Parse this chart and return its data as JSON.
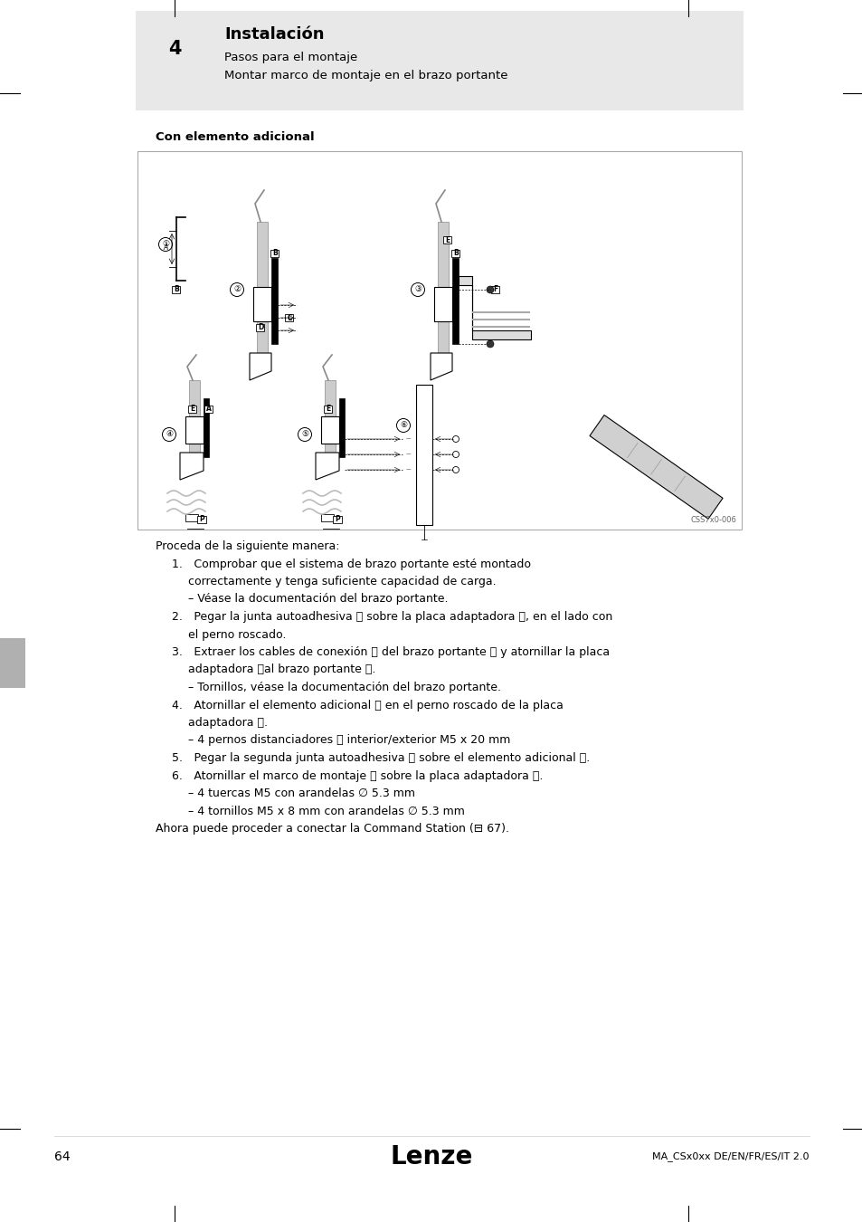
{
  "page_bg": "#ffffff",
  "header_bg": "#e0e0e0",
  "header_num": "4",
  "header_title": "Instalación",
  "header_sub1": "Pasos para el montaje",
  "header_sub2": "Montar marco de montaje en el brazo portante",
  "section_title": "Con elemento adicional",
  "diagram_caption": "CSS7x0-006",
  "footer_page": "64",
  "footer_brand": "Lenze",
  "footer_doc": "MA_CSx0xx DE/EN/FR/ES/IT 2.0",
  "body_lines": [
    {
      "indent": 0,
      "text": "Proceda de la siguiente manera:",
      "bold": false
    },
    {
      "indent": 1,
      "text": "1. Comprobar que el sistema de brazo portante esté montado",
      "bold": false
    },
    {
      "indent": 2,
      "text": "correctamente y tenga suficiente capacidad de carga.",
      "bold": false
    },
    {
      "indent": 3,
      "text": "– Véase la documentación del brazo portante.",
      "bold": false
    },
    {
      "indent": 1,
      "text": "2. Pegar la junta autoadhesiva Ⓐ sobre la placa adaptadora Ⓑ, en el lado con",
      "bold": false
    },
    {
      "indent": 2,
      "text": "el perno roscado.",
      "bold": false
    },
    {
      "indent": 1,
      "text": "3. Extraer los cables de conexión Ⓒ del brazo portante Ⓓ y atornillar la placa",
      "bold": false
    },
    {
      "indent": 2,
      "text": "adaptadora Ⓑal brazo portante Ⓓ.",
      "bold": false
    },
    {
      "indent": 3,
      "text": "– Tornillos, véase la documentación del brazo portante.",
      "bold": false
    },
    {
      "indent": 1,
      "text": "4. Atornillar el elemento adicional Ⓔ en el perno roscado de la placa",
      "bold": false
    },
    {
      "indent": 2,
      "text": "adaptadora Ⓑ.",
      "bold": false
    },
    {
      "indent": 3,
      "text": "– 4 pernos distanciadores Ⓕ interior/exterior M5 x 20 mm",
      "bold": false
    },
    {
      "indent": 1,
      "text": "5. Pegar la segunda junta autoadhesiva Ⓐ sobre el elemento adicional Ⓔ.",
      "bold": false
    },
    {
      "indent": 1,
      "text": "6. Atornillar el marco de montaje Ⓖ sobre la placa adaptadora Ⓔ.",
      "bold": false
    },
    {
      "indent": 3,
      "text": "– 4 tuercas M5 con arandelas ∅ 5.3 mm",
      "bold": false
    },
    {
      "indent": 3,
      "text": "– 4 tornillos M5 x 8 mm con arandelas ∅ 5.3 mm",
      "bold": false
    },
    {
      "indent": 0,
      "text": "Ahora puede proceder a conectar la Command Station (⊟ 67).",
      "bold": false
    }
  ]
}
